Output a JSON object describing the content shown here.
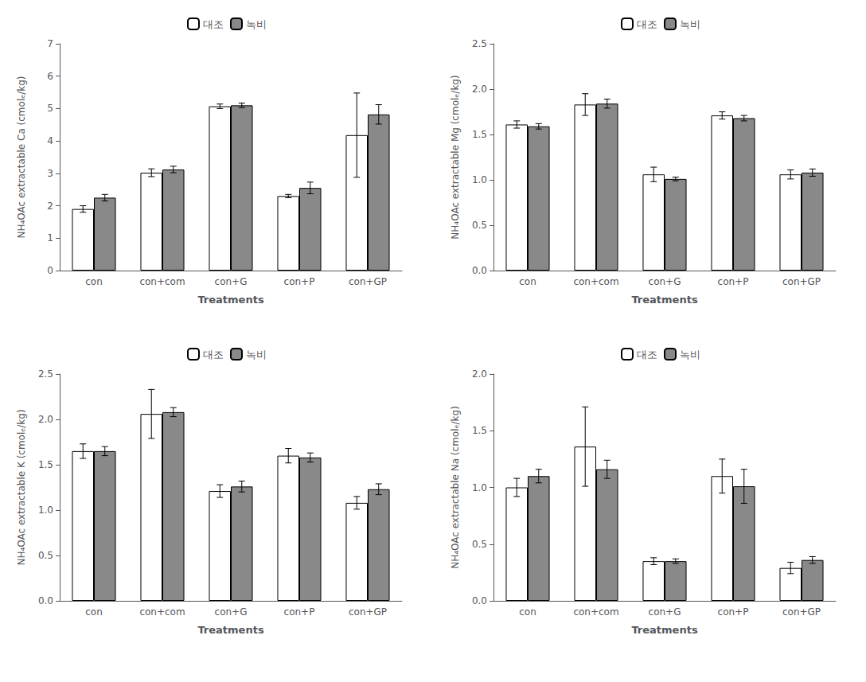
{
  "chart_data": [
    {
      "type": "bar",
      "categories": [
        "con",
        "con+com",
        "con+G",
        "con+P",
        "con+GP"
      ],
      "xlabel": "Treatments",
      "ylabel": "NH₄OAc extractable Ca (cmolₑ/kg)",
      "ylim": [
        0,
        7
      ],
      "yticks": [
        0,
        1,
        2,
        3,
        4,
        5,
        6,
        7
      ],
      "grid": false,
      "legend": "top",
      "series": [
        {
          "name": "대조",
          "color": "white",
          "values": [
            1.9,
            3.02,
            5.07,
            2.3,
            4.18
          ],
          "errors": [
            0.1,
            0.12,
            0.07,
            0.05,
            1.3
          ]
        },
        {
          "name": "녹비",
          "color": "#898989",
          "values": [
            2.25,
            3.12,
            5.1,
            2.55,
            4.82
          ],
          "errors": [
            0.1,
            0.1,
            0.07,
            0.18,
            0.3
          ]
        }
      ]
    },
    {
      "type": "bar",
      "categories": [
        "con",
        "con+com",
        "con+G",
        "con+P",
        "con+GP"
      ],
      "xlabel": "Treatments",
      "ylabel": "NH₄OAc extractable Mg (cmolₑ/kg)",
      "ylim": [
        0.0,
        2.5
      ],
      "yticks": [
        {
          "value": 0.0,
          "label": "0.0"
        },
        0.5,
        {
          "value": 1.0,
          "label": "1.0"
        },
        1.5,
        {
          "value": 2.0,
          "label": "2.0"
        },
        2.5
      ],
      "grid": false,
      "legend": "top",
      "series": [
        {
          "name": "대조",
          "color": "white",
          "values": [
            1.61,
            1.83,
            1.06,
            1.71,
            1.06
          ],
          "errors": [
            0.04,
            0.12,
            0.08,
            0.04,
            0.05
          ]
        },
        {
          "name": "녹비",
          "color": "#898989",
          "values": [
            1.59,
            1.84,
            1.01,
            1.68,
            1.08
          ],
          "errors": [
            0.03,
            0.05,
            0.02,
            0.03,
            0.04
          ]
        }
      ]
    },
    {
      "type": "bar",
      "categories": [
        "con",
        "con+com",
        "con+G",
        "con+P",
        "con+GP"
      ],
      "xlabel": "Treatments",
      "ylabel": "NH₄OAc extractable K (cmolₑ/kg)",
      "ylim": [
        0.0,
        2.5
      ],
      "yticks": [
        {
          "value": 0.0,
          "label": "0.0"
        },
        0.5,
        {
          "value": 1.0,
          "label": "1.0"
        },
        1.5,
        {
          "value": 2.0,
          "label": "2.0"
        },
        2.5
      ],
      "grid": false,
      "legend": "top",
      "series": [
        {
          "name": "대조",
          "color": "white",
          "values": [
            1.65,
            2.06,
            1.21,
            1.6,
            1.08
          ],
          "errors": [
            0.08,
            0.27,
            0.07,
            0.08,
            0.07
          ]
        },
        {
          "name": "녹비",
          "color": "#898989",
          "values": [
            1.65,
            2.08,
            1.26,
            1.58,
            1.23
          ],
          "errors": [
            0.05,
            0.05,
            0.06,
            0.05,
            0.06
          ]
        }
      ]
    },
    {
      "type": "bar",
      "categories": [
        "con",
        "con+com",
        "con+G",
        "con+P",
        "con+GP"
      ],
      "xlabel": "Treatments",
      "ylabel": "NH₄OAc extractable Na (cmolₑ/kg)",
      "ylim": [
        0.0,
        2.0
      ],
      "yticks": [
        {
          "value": 0.0,
          "label": "0.0"
        },
        0.5,
        {
          "value": 1.0,
          "label": "1.0"
        },
        1.5,
        {
          "value": 2.0,
          "label": "2.0"
        }
      ],
      "grid": false,
      "legend": "top",
      "series": [
        {
          "name": "대조",
          "color": "white",
          "values": [
            1.0,
            1.36,
            0.35,
            1.1,
            0.29
          ],
          "errors": [
            0.08,
            0.35,
            0.03,
            0.15,
            0.05
          ]
        },
        {
          "name": "녹비",
          "color": "#898989",
          "values": [
            1.1,
            1.16,
            0.35,
            1.01,
            0.36
          ],
          "errors": [
            0.06,
            0.08,
            0.02,
            0.15,
            0.03
          ]
        }
      ]
    }
  ]
}
